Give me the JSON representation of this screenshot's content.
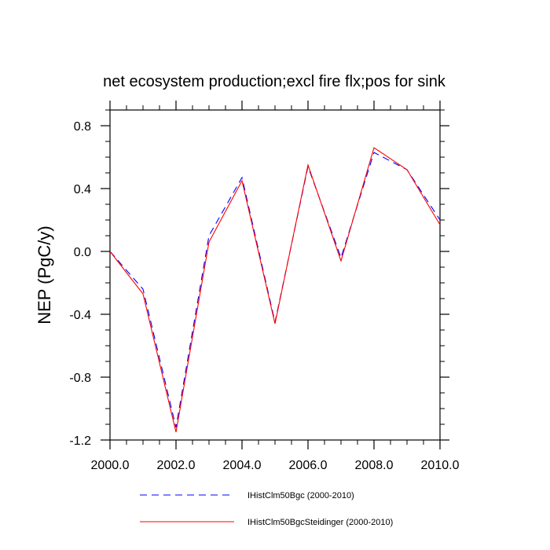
{
  "chart_data": {
    "type": "line",
    "title": "net ecosystem production;excl fire flx;pos for sink",
    "xlabel": "",
    "ylabel": "NEP  (PgC/y)",
    "xlim": [
      2000,
      2010
    ],
    "ylim": [
      -1.2,
      0.9
    ],
    "x": [
      2000,
      2001,
      2002,
      2003,
      2004,
      2005,
      2006,
      2007,
      2008,
      2009,
      2010
    ],
    "xticks": [
      2000,
      2002,
      2004,
      2006,
      2008,
      2010
    ],
    "xtick_labels": [
      "2000.0",
      "2002.0",
      "2004.0",
      "2006.0",
      "2008.0",
      "2010.0"
    ],
    "yticks": [
      -1.2,
      -0.8,
      -0.4,
      0.0,
      0.4,
      0.8
    ],
    "ytick_labels": [
      "-1.2",
      "-0.8",
      "-0.4",
      "0.0",
      "0.4",
      "0.8"
    ],
    "grid": false,
    "legend_position": "bottom",
    "series": [
      {
        "name": "IHistClm50Bgc (2000-2010)",
        "color": "#0000ff",
        "style": "dashed",
        "values": [
          0.0,
          -0.24,
          -1.12,
          0.1,
          0.47,
          -0.45,
          0.54,
          -0.04,
          0.63,
          0.52,
          0.2
        ]
      },
      {
        "name": "IHistClm50BgcSteidinger (2000-2010)",
        "color": "#ff0000",
        "style": "solid",
        "values": [
          0.0,
          -0.27,
          -1.15,
          0.06,
          0.45,
          -0.46,
          0.55,
          -0.06,
          0.66,
          0.52,
          0.17
        ]
      }
    ]
  }
}
